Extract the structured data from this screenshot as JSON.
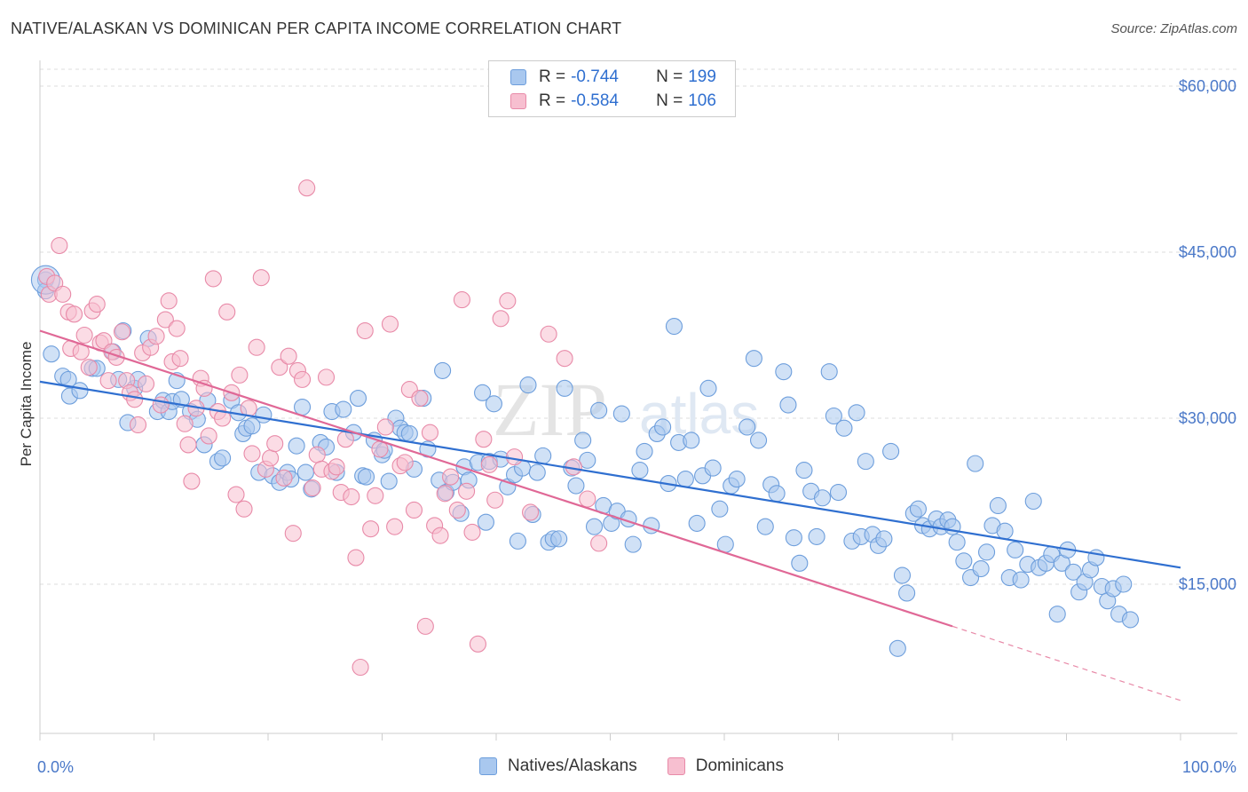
{
  "title": "NATIVE/ALASKAN VS DOMINICAN PER CAPITA INCOME CORRELATION CHART",
  "source": "Source: ZipAtlas.com",
  "watermark": {
    "zip": "ZIP",
    "atlas": "atlas"
  },
  "legend": {
    "rows": [
      {
        "r_label": "R =",
        "r_value": "-0.744",
        "n_label": "N =",
        "n_value": "199",
        "color": "#a9c8ef",
        "stroke": "#6d9edc"
      },
      {
        "r_label": "R =",
        "r_value": "-0.584",
        "n_label": "N =",
        "n_value": "106",
        "color": "#f7bfd0",
        "stroke": "#e88aa8"
      }
    ]
  },
  "bottom_legend": {
    "natives": "Natives/Alaskans",
    "dominicans": "Dominicans"
  },
  "chart_data": {
    "type": "scatter",
    "title": "NATIVE/ALASKAN VS DOMINICAN PER CAPITA INCOME CORRELATION CHART",
    "xlabel": "",
    "ylabel": "Per Capita Income",
    "xlim": [
      0,
      100
    ],
    "ylim": [
      0,
      62000
    ],
    "x_tick_labels": [
      "0.0%",
      "100.0%"
    ],
    "y_ticks": [
      15000,
      30000,
      45000,
      60000
    ],
    "y_tick_labels": [
      "$15,000",
      "$30,000",
      "$45,000",
      "$60,000"
    ],
    "grid": "horizontal dashed",
    "legend_position": "top-center",
    "series": [
      {
        "name": "Natives/Alaskans",
        "color": "#6d9edc",
        "fill": "#a9c8ef",
        "trend": {
          "x": [
            0,
            100
          ],
          "y": [
            33300,
            16500
          ]
        },
        "points": [
          [
            0.5,
            42500
          ],
          [
            0.5,
            41500
          ],
          [
            1,
            35800
          ],
          [
            2,
            33800
          ],
          [
            2.5,
            33500
          ],
          [
            2.6,
            32000
          ],
          [
            3.5,
            32500
          ],
          [
            4.6,
            34500
          ],
          [
            5,
            34500
          ],
          [
            6.4,
            36000
          ],
          [
            6.9,
            33500
          ],
          [
            7.3,
            37900
          ],
          [
            7.7,
            29600
          ],
          [
            8.3,
            32700
          ],
          [
            8.6,
            33500
          ],
          [
            9.5,
            37200
          ],
          [
            10.3,
            30600
          ],
          [
            10.8,
            31600
          ],
          [
            11.3,
            30600
          ],
          [
            11.6,
            31500
          ],
          [
            12.0,
            33400
          ],
          [
            12.4,
            31700
          ],
          [
            13.2,
            30600
          ],
          [
            13.8,
            29900
          ],
          [
            14.4,
            27600
          ],
          [
            14.7,
            31600
          ],
          [
            15.6,
            26100
          ],
          [
            16.0,
            26400
          ],
          [
            16.8,
            31600
          ],
          [
            17.4,
            30500
          ],
          [
            17.8,
            28600
          ],
          [
            18.1,
            29100
          ],
          [
            18.6,
            29300
          ],
          [
            19.2,
            25100
          ],
          [
            19.6,
            30300
          ],
          [
            20.4,
            24800
          ],
          [
            21.0,
            24200
          ],
          [
            21.7,
            25100
          ],
          [
            22.0,
            24500
          ],
          [
            22.5,
            27500
          ],
          [
            23.0,
            31000
          ],
          [
            23.3,
            25100
          ],
          [
            23.8,
            23600
          ],
          [
            24.6,
            27800
          ],
          [
            25.1,
            27400
          ],
          [
            25.6,
            30600
          ],
          [
            26.0,
            25100
          ],
          [
            26.6,
            30800
          ],
          [
            27.5,
            28700
          ],
          [
            27.9,
            31800
          ],
          [
            28.3,
            24800
          ],
          [
            28.6,
            24700
          ],
          [
            29.3,
            28000
          ],
          [
            30.0,
            26700
          ],
          [
            30.2,
            27100
          ],
          [
            30.6,
            24300
          ],
          [
            31.2,
            30000
          ],
          [
            31.6,
            29100
          ],
          [
            32.0,
            28700
          ],
          [
            32.4,
            28600
          ],
          [
            32.8,
            25400
          ],
          [
            33.6,
            31800
          ],
          [
            34.0,
            27200
          ],
          [
            35.0,
            24400
          ],
          [
            35.3,
            34300
          ],
          [
            35.6,
            23300
          ],
          [
            36.2,
            24200
          ],
          [
            36.9,
            21400
          ],
          [
            37.2,
            25600
          ],
          [
            37.6,
            24400
          ],
          [
            38.4,
            26000
          ],
          [
            38.8,
            32300
          ],
          [
            39.1,
            20600
          ],
          [
            39.4,
            26100
          ],
          [
            39.8,
            31300
          ],
          [
            40.4,
            26300
          ],
          [
            41.0,
            23800
          ],
          [
            41.6,
            24900
          ],
          [
            41.9,
            18900
          ],
          [
            42.3,
            25500
          ],
          [
            42.8,
            33000
          ],
          [
            43.2,
            21300
          ],
          [
            43.6,
            25100
          ],
          [
            44.1,
            26600
          ],
          [
            44.6,
            18800
          ],
          [
            45.0,
            19100
          ],
          [
            45.5,
            19100
          ],
          [
            46.0,
            32700
          ],
          [
            46.6,
            25500
          ],
          [
            47.0,
            23900
          ],
          [
            47.6,
            28000
          ],
          [
            48.0,
            26200
          ],
          [
            48.6,
            20200
          ],
          [
            49.0,
            30700
          ],
          [
            49.4,
            22100
          ],
          [
            50.1,
            20500
          ],
          [
            50.6,
            21600
          ],
          [
            51.0,
            30400
          ],
          [
            51.6,
            20900
          ],
          [
            52.0,
            18600
          ],
          [
            52.6,
            25300
          ],
          [
            53.0,
            27000
          ],
          [
            53.6,
            20300
          ],
          [
            54.1,
            28600
          ],
          [
            54.6,
            29200
          ],
          [
            55.1,
            24100
          ],
          [
            55.6,
            38300
          ],
          [
            56.0,
            27800
          ],
          [
            56.6,
            24500
          ],
          [
            57.1,
            28000
          ],
          [
            57.6,
            20500
          ],
          [
            58.1,
            24800
          ],
          [
            58.6,
            32700
          ],
          [
            59.0,
            25500
          ],
          [
            59.6,
            21800
          ],
          [
            60.1,
            18600
          ],
          [
            60.6,
            23900
          ],
          [
            61.1,
            24500
          ],
          [
            62.0,
            29200
          ],
          [
            62.6,
            35400
          ],
          [
            63.0,
            28000
          ],
          [
            63.6,
            20200
          ],
          [
            64.1,
            24000
          ],
          [
            64.6,
            23200
          ],
          [
            65.2,
            34200
          ],
          [
            65.6,
            31200
          ],
          [
            66.1,
            19200
          ],
          [
            66.6,
            16900
          ],
          [
            67.0,
            25300
          ],
          [
            67.6,
            23400
          ],
          [
            68.1,
            19300
          ],
          [
            68.6,
            22800
          ],
          [
            69.2,
            34200
          ],
          [
            69.6,
            30200
          ],
          [
            70.0,
            23300
          ],
          [
            70.5,
            29100
          ],
          [
            71.2,
            18900
          ],
          [
            71.6,
            30500
          ],
          [
            72.0,
            19300
          ],
          [
            72.4,
            26100
          ],
          [
            73.0,
            19500
          ],
          [
            73.5,
            18500
          ],
          [
            74.0,
            19100
          ],
          [
            74.6,
            27000
          ],
          [
            75.2,
            9200
          ],
          [
            75.6,
            15800
          ],
          [
            76.0,
            14200
          ],
          [
            76.6,
            21400
          ],
          [
            77.0,
            21800
          ],
          [
            77.4,
            20300
          ],
          [
            78.0,
            20000
          ],
          [
            78.6,
            20900
          ],
          [
            79.0,
            20200
          ],
          [
            79.6,
            20800
          ],
          [
            80.0,
            20200
          ],
          [
            80.4,
            18800
          ],
          [
            81.0,
            17100
          ],
          [
            81.6,
            15600
          ],
          [
            82.0,
            25900
          ],
          [
            82.5,
            16400
          ],
          [
            83.0,
            17900
          ],
          [
            83.5,
            20300
          ],
          [
            84.0,
            22100
          ],
          [
            84.6,
            19800
          ],
          [
            85.0,
            15600
          ],
          [
            85.5,
            18100
          ],
          [
            86.0,
            15400
          ],
          [
            86.6,
            16800
          ],
          [
            87.1,
            22500
          ],
          [
            87.6,
            16500
          ],
          [
            88.2,
            16900
          ],
          [
            88.7,
            17700
          ],
          [
            89.2,
            12300
          ],
          [
            89.6,
            16900
          ],
          [
            90.1,
            18100
          ],
          [
            90.6,
            16100
          ],
          [
            91.1,
            14300
          ],
          [
            91.6,
            15200
          ],
          [
            92.1,
            16300
          ],
          [
            92.6,
            17400
          ],
          [
            93.1,
            14800
          ],
          [
            93.6,
            13500
          ],
          [
            94.1,
            14600
          ],
          [
            94.6,
            12300
          ],
          [
            95.0,
            15000
          ],
          [
            95.6,
            11800
          ]
        ]
      },
      {
        "name": "Dominicans",
        "color": "#e88aa8",
        "fill": "#f7bfd0",
        "trend": {
          "x": [
            0,
            80
          ],
          "y": [
            37900,
            11200
          ]
        },
        "trend_dashed": {
          "x": [
            80,
            100
          ],
          "y": [
            11200,
            4500
          ]
        },
        "points": [
          [
            0.6,
            42800
          ],
          [
            0.8,
            41200
          ],
          [
            1.3,
            42200
          ],
          [
            1.7,
            45600
          ],
          [
            2.0,
            41200
          ],
          [
            2.5,
            39600
          ],
          [
            2.7,
            36300
          ],
          [
            3.0,
            39400
          ],
          [
            3.6,
            36000
          ],
          [
            3.9,
            37500
          ],
          [
            4.3,
            34600
          ],
          [
            4.6,
            39700
          ],
          [
            5.0,
            40300
          ],
          [
            5.3,
            36800
          ],
          [
            5.6,
            37000
          ],
          [
            6.0,
            33400
          ],
          [
            6.3,
            36000
          ],
          [
            6.7,
            35500
          ],
          [
            7.2,
            37800
          ],
          [
            7.6,
            33400
          ],
          [
            7.9,
            32300
          ],
          [
            8.3,
            31700
          ],
          [
            8.6,
            29400
          ],
          [
            9.0,
            35900
          ],
          [
            9.3,
            33100
          ],
          [
            9.7,
            36400
          ],
          [
            10.2,
            37400
          ],
          [
            10.6,
            31200
          ],
          [
            11.0,
            38900
          ],
          [
            11.3,
            40600
          ],
          [
            11.6,
            35100
          ],
          [
            12.0,
            38100
          ],
          [
            12.3,
            35400
          ],
          [
            12.7,
            29500
          ],
          [
            13.0,
            27600
          ],
          [
            13.3,
            24300
          ],
          [
            13.7,
            30900
          ],
          [
            14.1,
            33600
          ],
          [
            14.4,
            32700
          ],
          [
            14.8,
            28400
          ],
          [
            15.2,
            42600
          ],
          [
            15.6,
            30600
          ],
          [
            16.0,
            30000
          ],
          [
            16.4,
            39600
          ],
          [
            16.8,
            32300
          ],
          [
            17.2,
            23100
          ],
          [
            17.5,
            33900
          ],
          [
            17.9,
            21800
          ],
          [
            18.3,
            30900
          ],
          [
            18.6,
            26800
          ],
          [
            19.0,
            36400
          ],
          [
            19.4,
            42700
          ],
          [
            19.8,
            25400
          ],
          [
            20.2,
            26400
          ],
          [
            20.6,
            27700
          ],
          [
            21.0,
            34600
          ],
          [
            21.4,
            24600
          ],
          [
            21.8,
            35600
          ],
          [
            22.2,
            19600
          ],
          [
            22.6,
            34300
          ],
          [
            23.0,
            33500
          ],
          [
            23.4,
            50800
          ],
          [
            23.9,
            23700
          ],
          [
            24.3,
            26700
          ],
          [
            24.7,
            25400
          ],
          [
            25.1,
            33700
          ],
          [
            25.6,
            25200
          ],
          [
            26.0,
            25600
          ],
          [
            26.4,
            23300
          ],
          [
            26.8,
            28100
          ],
          [
            27.3,
            22900
          ],
          [
            27.7,
            17400
          ],
          [
            28.1,
            7500
          ],
          [
            28.5,
            37900
          ],
          [
            29.0,
            20000
          ],
          [
            29.4,
            23000
          ],
          [
            29.8,
            27200
          ],
          [
            30.3,
            29200
          ],
          [
            30.7,
            38500
          ],
          [
            31.1,
            20200
          ],
          [
            31.6,
            25700
          ],
          [
            32.0,
            26000
          ],
          [
            32.4,
            32600
          ],
          [
            32.8,
            21700
          ],
          [
            33.3,
            31800
          ],
          [
            33.8,
            11200
          ],
          [
            34.2,
            28700
          ],
          [
            34.6,
            20300
          ],
          [
            35.1,
            19400
          ],
          [
            35.5,
            23200
          ],
          [
            36.0,
            24700
          ],
          [
            36.6,
            21700
          ],
          [
            37.0,
            40700
          ],
          [
            37.4,
            23400
          ],
          [
            37.9,
            19700
          ],
          [
            38.4,
            9600
          ],
          [
            38.9,
            28100
          ],
          [
            39.4,
            25800
          ],
          [
            39.9,
            22600
          ],
          [
            40.4,
            39000
          ],
          [
            41.0,
            40600
          ],
          [
            41.6,
            26500
          ],
          [
            43.0,
            21500
          ],
          [
            44.6,
            37600
          ],
          [
            46.0,
            35400
          ],
          [
            46.8,
            25600
          ],
          [
            48.0,
            22700
          ],
          [
            49.0,
            18700
          ]
        ]
      }
    ]
  }
}
